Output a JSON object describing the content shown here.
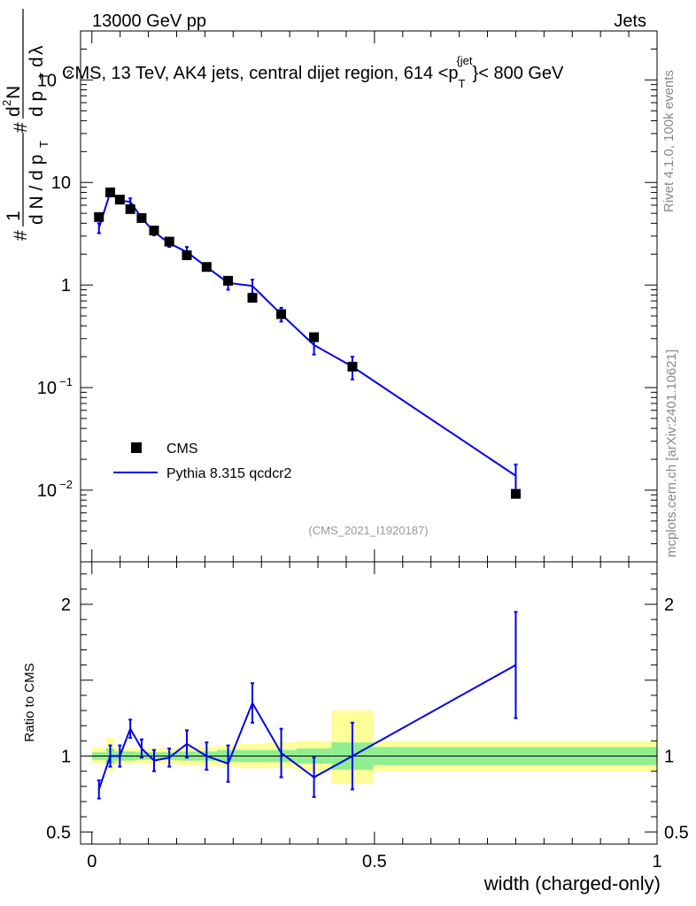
{
  "header": {
    "energy_label": "13000 GeV pp",
    "category_label": "Jets"
  },
  "main_title": {
    "text": "CMS, 13 TeV, AK4 jets, central dijet region, 614 <p",
    "sub": "T",
    "sup": "{jet",
    "suffix": "}< 800 GeV"
  },
  "y_axis_upper": {
    "label_parts": [
      "#",
      "1",
      "d N / d p",
      "T",
      "#",
      "d",
      "2",
      "N",
      "d p",
      "T",
      "d",
      "λ"
    ]
  },
  "y_axis_lower": {
    "label": "Ratio to CMS"
  },
  "x_axis": {
    "label": "width (charged-only)"
  },
  "side_labels": {
    "rivet": "Rivet 4.1.0,  100k events",
    "mcplots": "mcplots.cern.ch [arXiv:2401.10621]"
  },
  "analysis_id": "(CMS_2021_I1920187)",
  "legend": {
    "cms_label": "CMS",
    "mc_label": "Pythia 8.315 qcdcr2"
  },
  "colors": {
    "data": "#000000",
    "mc": "#0000ee",
    "band_inner": "#90ee90",
    "band_outer": "#ffff99"
  },
  "chart_data": {
    "type": "scatter",
    "upper": {
      "yscale": "log",
      "ylim": [
        0.002,
        300
      ],
      "xlim": [
        -0.02,
        1.0
      ],
      "yticks": [
        {
          "value": 0.01,
          "label": "10",
          "exp": "−2"
        },
        {
          "value": 0.1,
          "label": "10",
          "exp": "−1"
        },
        {
          "value": 1,
          "label": "1",
          "exp": ""
        },
        {
          "value": 10,
          "label": "10",
          "exp": ""
        },
        {
          "value": 100,
          "label": "10",
          "exp": "2"
        }
      ],
      "cms": {
        "x": [
          0.0125,
          0.0325,
          0.0495,
          0.068,
          0.088,
          0.11,
          0.137,
          0.168,
          0.203,
          0.241,
          0.284,
          0.335,
          0.393,
          0.461,
          0.75
        ],
        "y": [
          4.6,
          8.0,
          6.8,
          5.5,
          4.5,
          3.4,
          2.65,
          1.95,
          1.5,
          1.1,
          0.75,
          0.52,
          0.31,
          0.16,
          0.0092
        ]
      },
      "mc": {
        "x": [
          0.0125,
          0.0325,
          0.0495,
          0.068,
          0.088,
          0.11,
          0.137,
          0.168,
          0.203,
          0.241,
          0.284,
          0.335,
          0.393,
          0.461,
          0.75
        ],
        "y": [
          3.6,
          8.0,
          6.6,
          6.5,
          4.5,
          3.3,
          2.55,
          2.1,
          1.5,
          1.05,
          0.98,
          0.52,
          0.26,
          0.16,
          0.0138
        ],
        "err": [
          0.4,
          0.4,
          0.3,
          0.5,
          0.3,
          0.25,
          0.2,
          0.25,
          0.12,
          0.15,
          0.15,
          0.08,
          0.05,
          0.04,
          0.004
        ]
      }
    },
    "lower": {
      "ylim": [
        0.42,
        2.28
      ],
      "yticks": [
        {
          "value": 0.5,
          "label": "0.5"
        },
        {
          "value": 1,
          "label": "1"
        },
        {
          "value": 2,
          "label": "2"
        }
      ],
      "mc_ratio": {
        "x": [
          0.0125,
          0.0325,
          0.0495,
          0.068,
          0.088,
          0.11,
          0.137,
          0.168,
          0.203,
          0.241,
          0.284,
          0.335,
          0.393,
          0.461,
          0.75
        ],
        "y": [
          0.78,
          1.0,
          1.0,
          1.18,
          1.05,
          0.97,
          0.99,
          1.08,
          1.0,
          0.95,
          1.35,
          1.02,
          0.86,
          1.0,
          1.6
        ],
        "err": [
          0.06,
          0.07,
          0.07,
          0.06,
          0.06,
          0.07,
          0.06,
          0.09,
          0.09,
          0.12,
          0.13,
          0.16,
          0.13,
          0.22,
          0.35
        ]
      },
      "bands": [
        {
          "x0": 0.0,
          "x1": 0.025,
          "inner": [
            0.975,
            1.025
          ],
          "outer": [
            0.95,
            1.055
          ]
        },
        {
          "x0": 0.025,
          "x1": 0.04,
          "inner": [
            0.95,
            1.05
          ],
          "outer": [
            0.9,
            1.12
          ]
        },
        {
          "x0": 0.04,
          "x1": 0.059,
          "inner": [
            0.97,
            1.03
          ],
          "outer": [
            0.95,
            1.05
          ]
        },
        {
          "x0": 0.059,
          "x1": 0.077,
          "inner": [
            0.97,
            1.03
          ],
          "outer": [
            0.95,
            1.05
          ]
        },
        {
          "x0": 0.077,
          "x1": 0.099,
          "inner": [
            0.975,
            1.025
          ],
          "outer": [
            0.95,
            1.05
          ]
        },
        {
          "x0": 0.099,
          "x1": 0.121,
          "inner": [
            0.975,
            1.025
          ],
          "outer": [
            0.95,
            1.05
          ]
        },
        {
          "x0": 0.121,
          "x1": 0.153,
          "inner": [
            0.975,
            1.025
          ],
          "outer": [
            0.95,
            1.05
          ]
        },
        {
          "x0": 0.153,
          "x1": 0.184,
          "inner": [
            0.97,
            1.03
          ],
          "outer": [
            0.94,
            1.06
          ]
        },
        {
          "x0": 0.184,
          "x1": 0.222,
          "inner": [
            0.97,
            1.03
          ],
          "outer": [
            0.94,
            1.06
          ]
        },
        {
          "x0": 0.222,
          "x1": 0.26,
          "inner": [
            0.96,
            1.04
          ],
          "outer": [
            0.93,
            1.07
          ]
        },
        {
          "x0": 0.26,
          "x1": 0.308,
          "inner": [
            0.96,
            1.04
          ],
          "outer": [
            0.92,
            1.08
          ]
        },
        {
          "x0": 0.308,
          "x1": 0.362,
          "inner": [
            0.96,
            1.04
          ],
          "outer": [
            0.92,
            1.09
          ]
        },
        {
          "x0": 0.362,
          "x1": 0.424,
          "inner": [
            0.95,
            1.05
          ],
          "outer": [
            0.9,
            1.1
          ]
        },
        {
          "x0": 0.424,
          "x1": 0.498,
          "inner": [
            0.91,
            1.09
          ],
          "outer": [
            0.82,
            1.3
          ]
        },
        {
          "x0": 0.498,
          "x1": 1.0,
          "inner": [
            0.94,
            1.06
          ],
          "outer": [
            0.9,
            1.1
          ]
        }
      ]
    },
    "xticks": [
      {
        "value": 0,
        "label": "0"
      },
      {
        "value": 0.5,
        "label": "0.5"
      },
      {
        "value": 1,
        "label": "1"
      }
    ]
  }
}
